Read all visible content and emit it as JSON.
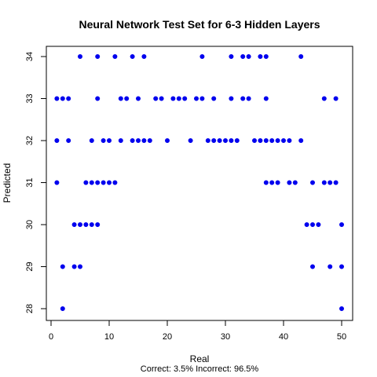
{
  "chart_data": {
    "type": "scatter",
    "title": "Neural Network Test Set for 6-3 Hidden Layers",
    "xlabel": "Real",
    "ylabel": "Predicted",
    "caption": "Correct: 3.5% Incorrect: 96.5%",
    "xlim": [
      0,
      50
    ],
    "ylim": [
      28,
      34
    ],
    "xticks": [
      0,
      10,
      20,
      30,
      40,
      50
    ],
    "yticks": [
      28,
      29,
      30,
      31,
      32,
      33,
      34
    ],
    "grid": false,
    "point_color": "#0000ee",
    "points": [
      [
        2,
        28
      ],
      [
        50,
        28
      ],
      [
        2,
        29
      ],
      [
        4,
        29
      ],
      [
        5,
        29
      ],
      [
        45,
        29
      ],
      [
        48,
        29
      ],
      [
        50,
        29
      ],
      [
        4,
        30
      ],
      [
        5,
        30
      ],
      [
        6,
        30
      ],
      [
        7,
        30
      ],
      [
        8,
        30
      ],
      [
        44,
        30
      ],
      [
        45,
        30
      ],
      [
        46,
        30
      ],
      [
        50,
        30
      ],
      [
        1,
        31
      ],
      [
        6,
        31
      ],
      [
        7,
        31
      ],
      [
        8,
        31
      ],
      [
        9,
        31
      ],
      [
        10,
        31
      ],
      [
        11,
        31
      ],
      [
        37,
        31
      ],
      [
        38,
        31
      ],
      [
        39,
        31
      ],
      [
        41,
        31
      ],
      [
        42,
        31
      ],
      [
        45,
        31
      ],
      [
        47,
        31
      ],
      [
        48,
        31
      ],
      [
        49,
        31
      ],
      [
        1,
        32
      ],
      [
        3,
        32
      ],
      [
        7,
        32
      ],
      [
        9,
        32
      ],
      [
        10,
        32
      ],
      [
        12,
        32
      ],
      [
        14,
        32
      ],
      [
        15,
        32
      ],
      [
        16,
        32
      ],
      [
        17,
        32
      ],
      [
        20,
        32
      ],
      [
        24,
        32
      ],
      [
        27,
        32
      ],
      [
        28,
        32
      ],
      [
        29,
        32
      ],
      [
        30,
        32
      ],
      [
        31,
        32
      ],
      [
        32,
        32
      ],
      [
        35,
        32
      ],
      [
        36,
        32
      ],
      [
        37,
        32
      ],
      [
        38,
        32
      ],
      [
        39,
        32
      ],
      [
        40,
        32
      ],
      [
        41,
        32
      ],
      [
        43,
        32
      ],
      [
        1,
        33
      ],
      [
        2,
        33
      ],
      [
        3,
        33
      ],
      [
        8,
        33
      ],
      [
        12,
        33
      ],
      [
        13,
        33
      ],
      [
        15,
        33
      ],
      [
        18,
        33
      ],
      [
        19,
        33
      ],
      [
        21,
        33
      ],
      [
        22,
        33
      ],
      [
        23,
        33
      ],
      [
        25,
        33
      ],
      [
        26,
        33
      ],
      [
        28,
        33
      ],
      [
        31,
        33
      ],
      [
        33,
        33
      ],
      [
        34,
        33
      ],
      [
        37,
        33
      ],
      [
        47,
        33
      ],
      [
        49,
        33
      ],
      [
        5,
        34
      ],
      [
        8,
        34
      ],
      [
        11,
        34
      ],
      [
        14,
        34
      ],
      [
        16,
        34
      ],
      [
        26,
        34
      ],
      [
        31,
        34
      ],
      [
        33,
        34
      ],
      [
        34,
        34
      ],
      [
        36,
        34
      ],
      [
        37,
        34
      ],
      [
        43,
        34
      ]
    ]
  }
}
